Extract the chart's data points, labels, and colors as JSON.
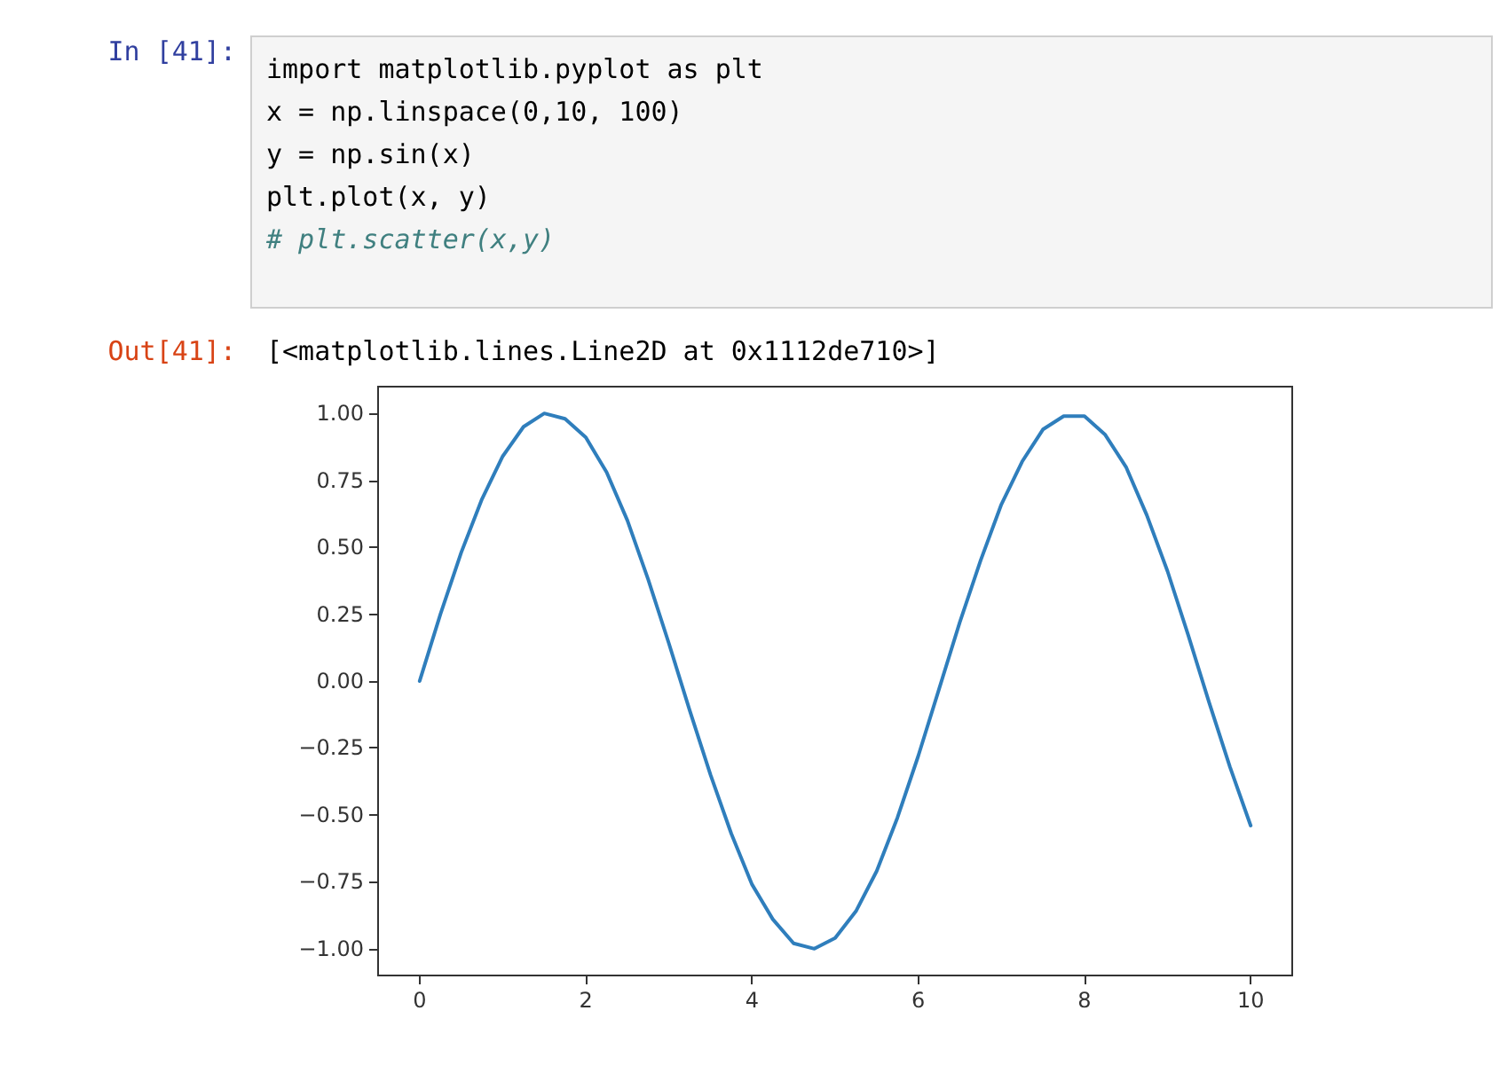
{
  "chart_data": {
    "type": "line",
    "annotations": [
      "In [41]:",
      "import matplotlib.pyplot as plt",
      "x = np.linspace(0,10, 100)",
      "y = np.sin(x)",
      "plt.plot(x, y)",
      "# plt.scatter(x,y)",
      "Out[41]:",
      "[<matplotlib.lines.Line2D at 0x1112de710>]"
    ],
    "x": [
      0,
      0.25,
      0.5,
      0.75,
      1,
      1.25,
      1.5,
      1.75,
      2,
      2.25,
      2.5,
      2.75,
      3,
      3.25,
      3.5,
      3.75,
      4,
      4.25,
      4.5,
      4.75,
      5,
      5.25,
      5.5,
      5.75,
      6,
      6.25,
      6.5,
      6.75,
      7,
      7.25,
      7.5,
      7.75,
      8,
      8.25,
      8.5,
      8.75,
      9,
      9.25,
      9.5,
      9.75,
      10
    ],
    "series": [
      {
        "color": "#2f7ebc",
        "values": [
          0,
          0.25,
          0.48,
          0.68,
          0.84,
          0.95,
          1.0,
          0.98,
          0.91,
          0.78,
          0.6,
          0.38,
          0.14,
          -0.11,
          -0.35,
          -0.57,
          -0.76,
          -0.89,
          -0.98,
          -1.0,
          -0.96,
          -0.86,
          -0.71,
          -0.51,
          -0.28,
          -0.03,
          0.22,
          0.45,
          0.66,
          0.82,
          0.94,
          0.99,
          0.99,
          0.92,
          0.8,
          0.62,
          0.41,
          0.17,
          -0.08,
          -0.32,
          -0.54
        ]
      }
    ],
    "xlim": [
      -0.5,
      10.5
    ],
    "ylim": [
      -1.1,
      1.1
    ],
    "xticks": [
      0,
      2,
      4,
      6,
      8,
      10
    ],
    "yticks": [
      {
        "value": -1,
        "label": "−1.00"
      },
      {
        "value": -0.75,
        "label": "−0.75"
      },
      {
        "value": -0.5,
        "label": "−0.50"
      },
      {
        "value": -0.25,
        "label": "−0.25"
      },
      {
        "value": 0,
        "label": "0.00"
      },
      {
        "value": 0.25,
        "label": "0.25"
      },
      {
        "value": 0.5,
        "label": "0.50"
      },
      {
        "value": 0.75,
        "label": "0.75"
      },
      {
        "value": 1,
        "label": "1.00"
      }
    ],
    "grid": false,
    "marker": "none",
    "line_style": "solid"
  }
}
